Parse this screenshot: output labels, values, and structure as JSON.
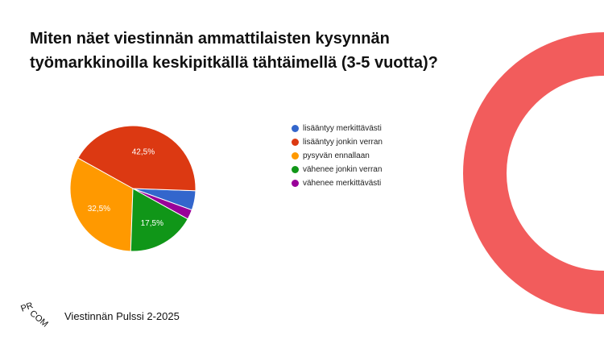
{
  "slide": {
    "title_lines": [
      "Miten näet viestinnän ammattilaisten kysynnän",
      "työmarkkinoilla keskipitkällä tähtäimellä (3-5 vuotta)?"
    ],
    "footer_text": "Viestinnän Pulssi 2-2025",
    "logo": {
      "letters_top": "PR",
      "letters_bottom": "COM"
    },
    "decoration_color": "#f25c5c"
  },
  "chart_data": {
    "type": "pie",
    "title": "Miten näet viestinnän ammattilaisten kysynnän työmarkkinoilla keskipitkällä tähtäimellä (3-5 vuotta)?",
    "categories": [
      "lisääntyy merkittävästi",
      "lisääntyy jonkin verran",
      "pysyvän ennallaan",
      "vähenee jonkin verran",
      "vähenee merkittävästi"
    ],
    "values": [
      5.0,
      42.5,
      32.5,
      17.5,
      2.5
    ],
    "labels": [
      "",
      "42,5%",
      "32,5%",
      "17,5%",
      ""
    ],
    "colors": [
      "#3366cc",
      "#dc3912",
      "#ff9900",
      "#109618",
      "#990099"
    ],
    "legend_position": "right"
  }
}
